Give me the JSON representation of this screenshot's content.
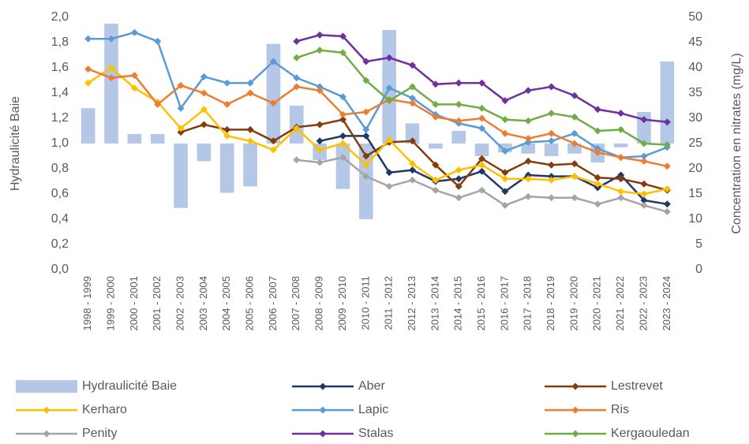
{
  "chart_data": {
    "type": "combo",
    "y_label": "Hydraulicité Baie",
    "y2_label": "Concentration en nitrates (mg/L)",
    "categories": [
      "1998 - 1999",
      "1999 - 2000",
      "2000 - 2001",
      "2001 - 2002",
      "2002 - 2003",
      "2003 - 2004",
      "2004 - 2005",
      "2005 - 2006",
      "2006 - 2007",
      "2007 - 2008",
      "2008 - 2009",
      "2009 - 2010",
      "2010 - 2011",
      "2011 - 2012",
      "2012 - 2013",
      "2013 - 2014",
      "2014 - 2015",
      "2015 - 2016",
      "2016 - 2017",
      "2017 - 2018",
      "2018 - 2019",
      "2019 - 2020",
      "2020 - 2021",
      "2021 - 2022",
      "2022 - 2023",
      "2023 - 2024"
    ],
    "ylim": [
      0,
      2
    ],
    "yticks": [
      {
        "value": 0,
        "label": "0,0"
      },
      {
        "value": 0.2,
        "label": "0,2"
      },
      {
        "value": 0.4,
        "label": "0,4"
      },
      {
        "value": 0.6,
        "label": "0,6"
      },
      {
        "value": 0.8,
        "label": "0,8"
      },
      {
        "value": 1,
        "label": "1,0"
      },
      {
        "value": 1.2,
        "label": "1,2"
      },
      {
        "value": 1.4,
        "label": "1,4"
      },
      {
        "value": 1.6,
        "label": "1,6"
      },
      {
        "value": 1.8,
        "label": "1,8"
      },
      {
        "value": 2,
        "label": "2,0"
      }
    ],
    "y2lim": [
      0,
      50
    ],
    "y2ticks": [
      0,
      5,
      10,
      15,
      20,
      25,
      30,
      35,
      40,
      45,
      50
    ],
    "bar_base": 1,
    "legend": "bottom",
    "series": [
      {
        "name": "Hydraulicité Baie",
        "type": "bar",
        "axis": "y",
        "color": "#b4c7e7",
        "values": [
          1.28,
          1.95,
          1.075,
          1.075,
          0.49,
          0.86,
          0.61,
          0.66,
          1.79,
          1.3,
          0.87,
          0.64,
          0.4,
          1.9,
          1.16,
          0.96,
          1.1,
          0.9,
          0.93,
          0.92,
          0.9,
          0.92,
          0.85,
          0.97,
          1.25,
          1.65
        ]
      },
      {
        "name": "Aber",
        "type": "line",
        "axis": "y2",
        "color": "#1f3864",
        "values": [
          null,
          null,
          null,
          null,
          null,
          null,
          null,
          null,
          null,
          null,
          25.5,
          26.5,
          26.5,
          19.25,
          19.75,
          17.5,
          18,
          19.5,
          15.5,
          18.75,
          18.5,
          18.5,
          16.25,
          18.75,
          13.75,
          13
        ]
      },
      {
        "name": "Lestrevet",
        "type": "line",
        "axis": "y2",
        "color": "#843c0c",
        "values": [
          null,
          null,
          null,
          null,
          27.25,
          28.75,
          27.75,
          27.75,
          25.5,
          28.25,
          28.75,
          29.75,
          22.5,
          25.25,
          25.5,
          20.75,
          16.5,
          22,
          19.25,
          21.5,
          20.75,
          21,
          18.25,
          18,
          17,
          15.75
        ]
      },
      {
        "name": "Kerharo",
        "type": "line",
        "axis": "y2",
        "color": "#ffc000",
        "values": [
          37,
          40,
          36,
          33.25,
          28,
          31.75,
          26.5,
          25.5,
          23.75,
          28,
          23.75,
          25,
          20.75,
          25.75,
          21,
          17.75,
          19.75,
          20.75,
          18,
          18,
          17.75,
          18.5,
          17,
          15.5,
          15,
          16
        ]
      },
      {
        "name": "Lapic",
        "type": "line",
        "axis": "y2",
        "color": "#5b9bd5",
        "values": [
          45.75,
          45.75,
          47,
          45.25,
          32,
          38.25,
          37,
          37,
          41.25,
          38,
          36.25,
          34.25,
          27.75,
          36,
          34,
          30.75,
          29,
          28,
          23.5,
          25.25,
          25.5,
          27,
          24,
          22.25,
          22.5,
          24.25
        ]
      },
      {
        "name": "Ris",
        "type": "line",
        "axis": "y2",
        "color": "#ed7d31",
        "values": [
          39.75,
          38,
          38.5,
          32.75,
          36.5,
          35,
          32.75,
          35,
          33,
          36.25,
          35.5,
          30.75,
          31.25,
          33.75,
          33,
          30.25,
          29.5,
          30,
          27,
          26,
          27,
          25,
          23.25,
          22.25,
          21.5,
          20.5
        ]
      },
      {
        "name": "Penity",
        "type": "line",
        "axis": "y2",
        "color": "#a5a5a5",
        "values": [
          null,
          null,
          null,
          null,
          null,
          null,
          null,
          null,
          null,
          21.75,
          21.25,
          22.25,
          18.5,
          16.5,
          17.75,
          15.75,
          14.25,
          15.75,
          12.75,
          14.5,
          14.25,
          14.25,
          13,
          14.25,
          12.75,
          11.5
        ]
      },
      {
        "name": "Stalas",
        "type": "line",
        "axis": "y2",
        "color": "#7030a0",
        "values": [
          null,
          null,
          null,
          null,
          null,
          null,
          null,
          null,
          null,
          45.25,
          46.5,
          46.25,
          41.25,
          42,
          40.5,
          36.75,
          37,
          37,
          33.5,
          35.5,
          36.25,
          34.5,
          31.75,
          31,
          29.75,
          29.25
        ]
      },
      {
        "name": "Kergaouledan",
        "type": "line",
        "axis": "y2",
        "color": "#70ad47",
        "values": [
          null,
          null,
          null,
          null,
          null,
          null,
          null,
          null,
          null,
          42,
          43.5,
          43,
          37.5,
          33.5,
          36.25,
          32.75,
          32.75,
          32,
          29.75,
          29.5,
          31,
          30.25,
          27.5,
          27.75,
          25,
          24.75
        ]
      }
    ]
  }
}
